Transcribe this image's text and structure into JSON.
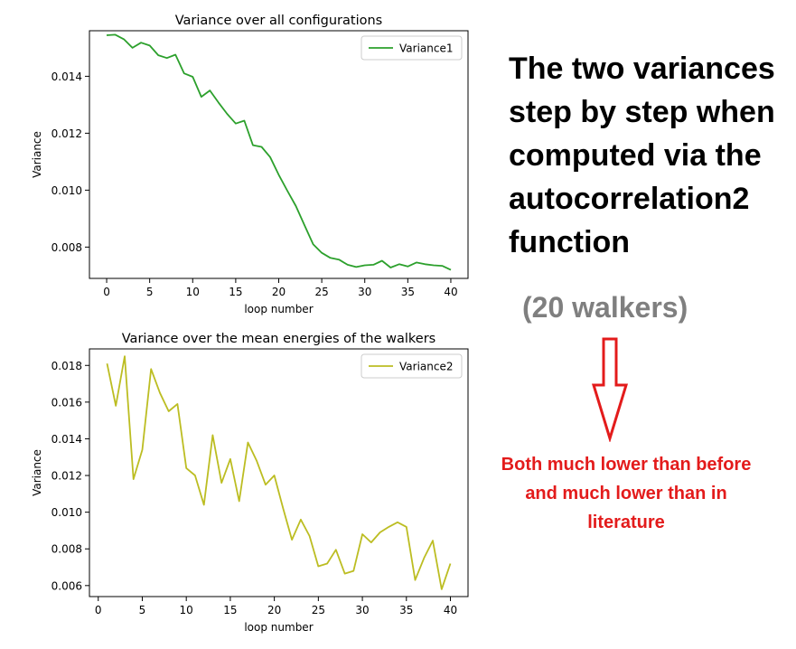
{
  "chart_data": [
    {
      "type": "line",
      "title": "Variance over all configurations",
      "xlabel": "loop number",
      "ylabel": "Variance",
      "xlim": [
        -2,
        42
      ],
      "ylim": [
        0.0069,
        0.0156
      ],
      "xticks": [
        0,
        5,
        10,
        15,
        20,
        25,
        30,
        35,
        40
      ],
      "xtick_labels": [
        "0",
        "5",
        "10",
        "15",
        "20",
        "25",
        "30",
        "35",
        "40"
      ],
      "yticks": [
        0.008,
        0.01,
        0.012,
        0.014
      ],
      "ytick_labels": [
        "0.008",
        "0.010",
        "0.012",
        "0.014"
      ],
      "grid": false,
      "legend": "top-right",
      "series": [
        {
          "name": "Variance1",
          "color": "#2ca02c",
          "x": [
            0,
            1,
            2,
            3,
            4,
            5,
            6,
            7,
            8,
            9,
            10,
            11,
            12,
            13,
            14,
            15,
            16,
            17,
            18,
            19,
            20,
            21,
            22,
            23,
            24,
            25,
            26,
            27,
            28,
            29,
            30,
            31,
            32,
            33,
            34,
            35,
            36,
            37,
            38,
            39,
            40
          ],
          "y": [
            0.01544,
            0.01546,
            0.0153,
            0.015,
            0.01518,
            0.01508,
            0.01474,
            0.01464,
            0.01476,
            0.0141,
            0.01398,
            0.01328,
            0.0135,
            0.01308,
            0.01268,
            0.01234,
            0.01244,
            0.01158,
            0.01152,
            0.01116,
            0.01054,
            0.00998,
            0.00944,
            0.00876,
            0.0081,
            0.0078,
            0.00762,
            0.00756,
            0.00738,
            0.0073,
            0.00736,
            0.00738,
            0.00752,
            0.00728,
            0.0074,
            0.00732,
            0.00746,
            0.0074,
            0.00736,
            0.00734,
            0.0072
          ]
        }
      ]
    },
    {
      "type": "line",
      "title": "Variance over the mean energies of the walkers",
      "xlabel": "loop number",
      "ylabel": "Variance",
      "xlim": [
        -1,
        42
      ],
      "ylim": [
        0.0054,
        0.0189
      ],
      "xticks": [
        0,
        5,
        10,
        15,
        20,
        25,
        30,
        35,
        40
      ],
      "xtick_labels": [
        "0",
        "5",
        "10",
        "15",
        "20",
        "25",
        "30",
        "35",
        "40"
      ],
      "yticks": [
        0.006,
        0.008,
        0.01,
        0.012,
        0.014,
        0.016,
        0.018
      ],
      "ytick_labels": [
        "0.006",
        "0.008",
        "0.010",
        "0.012",
        "0.014",
        "0.016",
        "0.018"
      ],
      "grid": false,
      "legend": "top-right",
      "series": [
        {
          "name": "Variance2",
          "color": "#bcbd22",
          "x": [
            1,
            2,
            3,
            4,
            5,
            6,
            7,
            8,
            9,
            10,
            11,
            12,
            13,
            14,
            15,
            16,
            17,
            18,
            19,
            20,
            21,
            22,
            23,
            24,
            25,
            26,
            27,
            28,
            29,
            30,
            31,
            32,
            33,
            34,
            35,
            36,
            37,
            38,
            39,
            40
          ],
          "y": [
            0.0181,
            0.0158,
            0.0185,
            0.0118,
            0.0134,
            0.0178,
            0.0165,
            0.0155,
            0.0159,
            0.0124,
            0.012,
            0.0104,
            0.0142,
            0.0116,
            0.0129,
            0.0106,
            0.0138,
            0.0128,
            0.0115,
            0.012,
            0.0102,
            0.0085,
            0.0096,
            0.0087,
            0.00705,
            0.0072,
            0.00795,
            0.00665,
            0.0068,
            0.0088,
            0.00835,
            0.0089,
            0.0092,
            0.00945,
            0.0092,
            0.0063,
            0.0075,
            0.00845,
            0.0058,
            0.0072
          ]
        }
      ]
    }
  ],
  "notes": {
    "heading_lines": [
      "The two variances",
      "step by step when",
      "computed via the",
      "autocorrelation2",
      "function"
    ],
    "walkers": "(20 walkers)",
    "remark_lines": [
      "Both much lower than before",
      "and much lower than in",
      "literature"
    ]
  },
  "colors": {
    "walkers_text": "#7f7f7f",
    "remark_text": "#e31b1b",
    "arrow_stroke": "#e31b1b",
    "arrow_fill": "#ffffff"
  }
}
